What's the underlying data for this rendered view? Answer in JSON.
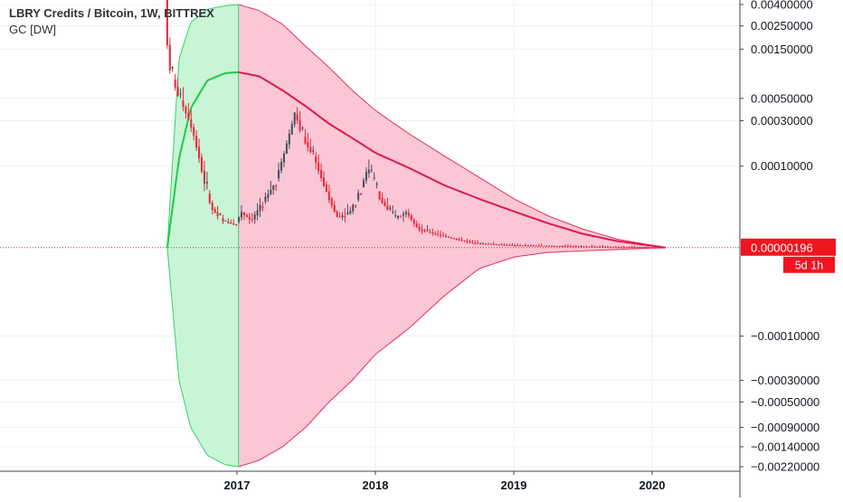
{
  "header": {
    "title": "LBRY Credits / Bitcoin, 1W, BITTREX",
    "indicator": "GC [DW]"
  },
  "colors": {
    "background": "#ffffff",
    "grid": "#eef1f4",
    "axis_line": "#434651",
    "axis_text": "#131722",
    "candle_up": "#4a4f5c",
    "candle_down": "#e8283c",
    "band_green_fill": "#c8f5d5",
    "band_green_line": "#34d36a",
    "band_pink_fill": "#fbc7d6",
    "band_pink_line": "#e2315f",
    "mid_line_green": "#22c84a",
    "mid_line_red": "#e0174f",
    "price_line": "#e8283c",
    "price_badge": "#f0151f"
  },
  "price_badge": {
    "price": "0.00000196",
    "countdown": "5d 1h"
  },
  "chart_data": {
    "type": "candlestick",
    "title": "LBRY Credits / Bitcoin, 1W, BITTREX",
    "indicator": "GC [DW]",
    "x_axis": {
      "kind": "date",
      "range": [
        "2016-06-15",
        "2020-07-01"
      ],
      "ticks": [
        {
          "label": "2017",
          "date": "2017-01-01"
        },
        {
          "label": "2018",
          "date": "2018-01-01"
        },
        {
          "label": "2019",
          "date": "2019-01-01"
        },
        {
          "label": "2020",
          "date": "2020-01-01"
        }
      ]
    },
    "y_axis": {
      "scale": "symmetric-log",
      "ticks": [
        "0.00400000",
        "0.00250000",
        "0.00150000",
        "0.00050000",
        "0.00030000",
        "0.00010000",
        "-0.00010000",
        "-0.00030000",
        "-0.00050000",
        "-0.00090000",
        "-0.00140000",
        "-0.00220000"
      ]
    },
    "last_price": 1.96e-06,
    "grid": true,
    "band": {
      "start": "2016-07-01",
      "peak": "2017-01-05",
      "end": "2020-02-05",
      "upper": [
        [
          "2016-07-01",
          2e-06
        ],
        [
          "2016-08-01",
          0.0012
        ],
        [
          "2016-09-01",
          0.0027
        ],
        [
          "2016-10-15",
          0.0036
        ],
        [
          "2016-12-01",
          0.0039
        ],
        [
          "2017-01-05",
          0.004
        ],
        [
          "2017-03-01",
          0.0035
        ],
        [
          "2017-05-01",
          0.0026
        ],
        [
          "2017-07-01",
          0.0016
        ],
        [
          "2017-09-01",
          0.001
        ],
        [
          "2017-11-01",
          0.0006
        ],
        [
          "2018-01-01",
          0.00038
        ],
        [
          "2018-04-01",
          0.00022
        ],
        [
          "2018-07-01",
          0.00013
        ],
        [
          "2018-10-01",
          7.5e-05
        ],
        [
          "2019-01-01",
          4e-05
        ],
        [
          "2019-04-01",
          2.2e-05
        ],
        [
          "2019-07-01",
          1.2e-05
        ],
        [
          "2019-10-01",
          6e-06
        ],
        [
          "2020-01-01",
          3e-06
        ],
        [
          "2020-02-05",
          2e-06
        ]
      ],
      "lower": [
        [
          "2016-07-01",
          2e-06
        ],
        [
          "2016-08-01",
          -0.0003
        ],
        [
          "2016-09-01",
          -0.0009
        ],
        [
          "2016-10-15",
          -0.0017
        ],
        [
          "2016-12-01",
          -0.0021
        ],
        [
          "2017-01-05",
          -0.0022
        ],
        [
          "2017-03-01",
          -0.0019
        ],
        [
          "2017-05-01",
          -0.0014
        ],
        [
          "2017-07-01",
          -0.0009
        ],
        [
          "2017-09-01",
          -0.0005
        ],
        [
          "2017-11-01",
          -0.0003
        ],
        [
          "2018-01-01",
          -0.00016
        ],
        [
          "2018-04-01",
          -8e-05
        ],
        [
          "2018-07-01",
          -3e-05
        ],
        [
          "2018-10-01",
          -8e-06
        ],
        [
          "2019-01-01",
          -2e-06
        ],
        [
          "2019-04-01",
          0.0
        ],
        [
          "2020-02-05",
          2e-06
        ]
      ],
      "mid": [
        [
          "2016-07-01",
          2e-06
        ],
        [
          "2016-08-01",
          0.00012
        ],
        [
          "2016-09-01",
          0.0004
        ],
        [
          "2016-10-15",
          0.00075
        ],
        [
          "2016-12-01",
          0.00088
        ],
        [
          "2017-01-05",
          0.0009
        ],
        [
          "2017-03-01",
          0.00082
        ],
        [
          "2017-05-01",
          0.0006
        ],
        [
          "2017-07-01",
          0.00042
        ],
        [
          "2017-09-01",
          0.00028
        ],
        [
          "2017-11-01",
          0.0002
        ],
        [
          "2018-01-01",
          0.00014
        ],
        [
          "2018-04-01",
          9.5e-05
        ],
        [
          "2018-07-01",
          6e-05
        ],
        [
          "2018-10-01",
          4e-05
        ],
        [
          "2019-01-01",
          2.6e-05
        ],
        [
          "2019-04-01",
          1.6e-05
        ],
        [
          "2019-07-01",
          9e-06
        ],
        [
          "2019-10-01",
          5e-06
        ],
        [
          "2020-01-01",
          2.8e-06
        ],
        [
          "2020-02-05",
          2e-06
        ]
      ]
    },
    "candle_path": [
      [
        "2016-07-01",
        0.005
      ],
      [
        "2016-07-10",
        0.0012
      ],
      [
        "2016-07-20",
        0.0008
      ],
      [
        "2016-08-01",
        0.0006
      ],
      [
        "2016-08-15",
        0.00045
      ],
      [
        "2016-09-01",
        0.00032
      ],
      [
        "2016-09-15",
        0.00022
      ],
      [
        "2016-10-01",
        0.00012
      ],
      [
        "2016-10-15",
        6e-05
      ],
      [
        "2016-11-01",
        3e-05
      ],
      [
        "2016-12-01",
        1.8e-05
      ],
      [
        "2017-01-01",
        1.5e-05
      ],
      [
        "2017-01-20",
        2.5e-05
      ],
      [
        "2017-02-15",
        1.8e-05
      ],
      [
        "2017-03-15",
        3.5e-05
      ],
      [
        "2017-04-15",
        6e-05
      ],
      [
        "2017-05-15",
        0.00015
      ],
      [
        "2017-06-10",
        0.00036
      ],
      [
        "2017-07-01",
        0.0002
      ],
      [
        "2017-08-01",
        0.00012
      ],
      [
        "2017-09-01",
        5e-05
      ],
      [
        "2017-10-01",
        2e-05
      ],
      [
        "2017-11-01",
        2.5e-05
      ],
      [
        "2017-12-20",
        9.5e-05
      ],
      [
        "2018-01-20",
        4e-05
      ],
      [
        "2018-03-01",
        2e-05
      ],
      [
        "2018-04-01",
        2.5e-05
      ],
      [
        "2018-05-01",
        1.2e-05
      ],
      [
        "2018-07-01",
        8e-06
      ],
      [
        "2018-10-01",
        4e-06
      ],
      [
        "2019-01-01",
        3e-06
      ],
      [
        "2019-07-01",
        2.5e-06
      ],
      [
        "2020-02-05",
        1.96e-06
      ]
    ]
  }
}
